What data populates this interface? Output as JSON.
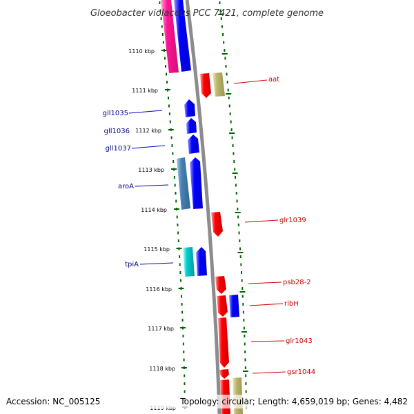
{
  "title": "Gloeobacter violaceus PCC 7421, complete genome",
  "footer": {
    "accession": "Accession: NC_005125",
    "topology": "Topology: circular; Length: 4,659,019 bp; Genes: 4,482"
  },
  "colors": {
    "forward_gene": "#0000ff",
    "reverse_gene": "#ff0000",
    "rna_magenta": "#ff1493",
    "other_steelblue": "#4682b4",
    "other_cyan": "#00cccc",
    "other_khaki": "#bdb76b",
    "backbone": "#888888",
    "ruler_dots": "#006400",
    "forward_label": "#00008b",
    "reverse_label": "#cc0000"
  },
  "kbp_ticks": [
    "1110 kbp",
    "1111 kbp",
    "1112 kbp",
    "1113 kbp",
    "1114 kbp",
    "1115 kbp",
    "1116 kbp",
    "1117 kbp",
    "1118 kbp",
    "1119 kbp"
  ],
  "forward_labels": [
    "gll1035",
    "gll1036",
    "gll1037",
    "aroA",
    "tpiA"
  ],
  "reverse_labels": [
    "aat",
    "glr1039",
    "psb28-2",
    "ribH",
    "glr1043",
    "gsr1044"
  ]
}
